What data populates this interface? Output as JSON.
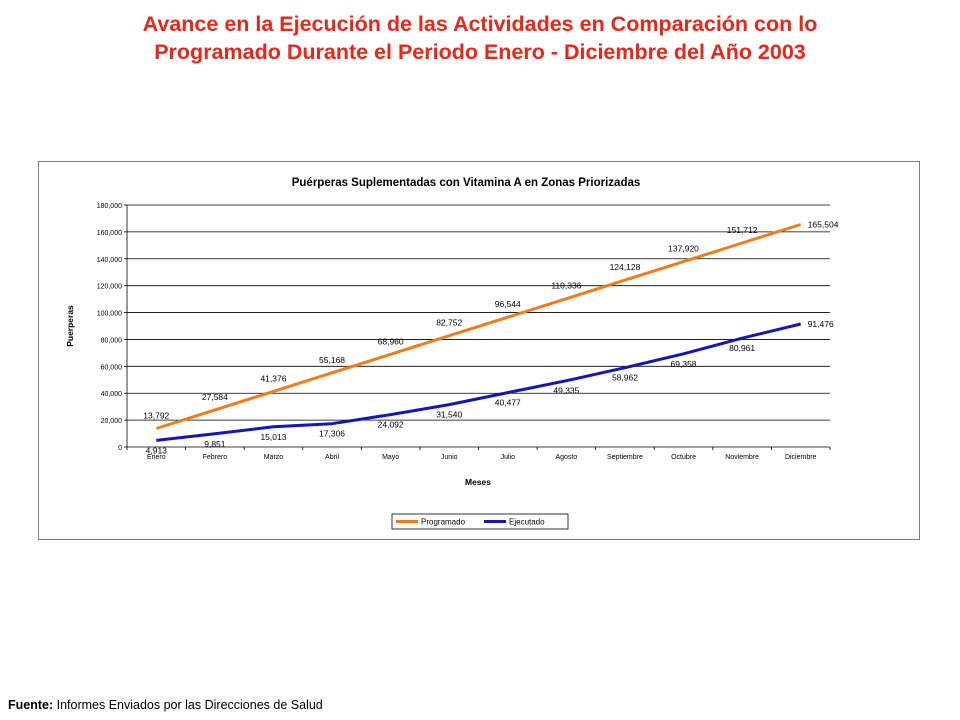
{
  "slide": {
    "title_line1": "Avance en la Ejecución de las Actividades en Comparación con lo",
    "title_line2": "Programado Durante el Periodo Enero - Diciembre del Año 2003",
    "source_label": "Fuente:",
    "source_text": " Informes Enviados por las Direcciones de Salud"
  },
  "chart_data": {
    "type": "line",
    "title": "Puérperas Suplementadas con Vitamina A en Zonas Priorizadas",
    "xlabel": "Meses",
    "ylabel": "Puerperas",
    "categories": [
      "Enero",
      "Febrero",
      "Marzo",
      "Abril",
      "Mayo",
      "Junio",
      "Julio",
      "Agosto",
      "Septiembre",
      "Octubre",
      "Noviembre",
      "Diciembre"
    ],
    "ylim": [
      0,
      180000
    ],
    "yticks": [
      0,
      20000,
      40000,
      60000,
      80000,
      100000,
      120000,
      140000,
      160000,
      180000
    ],
    "ytick_labels": [
      "0",
      "20,000",
      "40,000",
      "60,000",
      "80,000",
      "100,000",
      "120,000",
      "140,000",
      "160,000",
      "180,000"
    ],
    "grid": true,
    "legend_position": "bottom",
    "series": [
      {
        "name": "Programado",
        "color": "#f07c1e",
        "values": [
          13792,
          27584,
          41376,
          55168,
          68960,
          82752,
          96544,
          110336,
          124128,
          137920,
          151712,
          165504
        ],
        "labels": [
          "13,792",
          "27,584",
          "41,376",
          "55,168",
          "68,960",
          "82,752",
          "96,544",
          "110,336",
          "124,128",
          "137,920",
          "151,712",
          "165,504"
        ]
      },
      {
        "name": "Ejecutado",
        "color": "#1515b8",
        "values": [
          4913,
          9851,
          15013,
          17306,
          24092,
          31540,
          40477,
          49335,
          58962,
          69358,
          80961,
          91476
        ],
        "labels": [
          "4,913",
          "9,851",
          "15,013",
          "17,306",
          "24,092",
          "31,540",
          "40,477",
          "49,335",
          "58,962",
          "69,358",
          "80,961",
          "91,476"
        ]
      }
    ]
  }
}
